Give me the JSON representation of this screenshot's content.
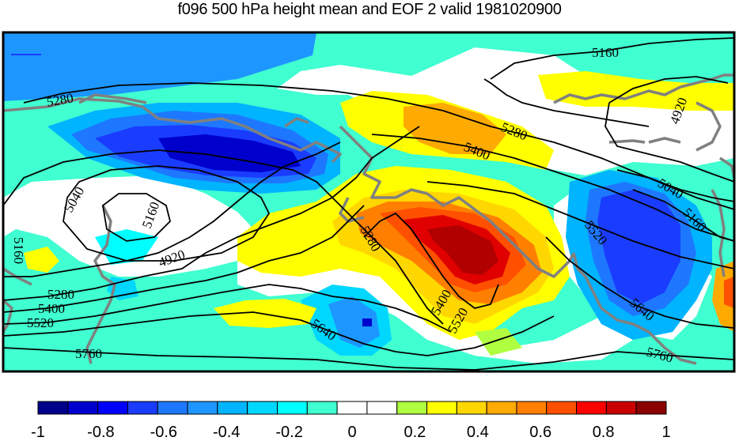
{
  "title": "f096 500 hPa height mean and EOF 2 valid 1981020900",
  "colorbar": {
    "colors": [
      "#00008b",
      "#0000cd",
      "#0000ff",
      "#1a3cff",
      "#1e78ff",
      "#1e96ff",
      "#00b4ff",
      "#00d7ff",
      "#00ffff",
      "#40ffd0",
      "#ffffff",
      "#ffffff",
      "#b0ff40",
      "#ffff00",
      "#ffd700",
      "#ffaa00",
      "#ff8000",
      "#ff5000",
      "#ff0000",
      "#c80000",
      "#8b0000"
    ],
    "tick_labels": [
      "-1",
      "-0.8",
      "-0.6",
      "-0.4",
      "-0.2",
      "0",
      "0.2",
      "0.4",
      "0.6",
      "0.8",
      "1"
    ]
  },
  "fill_colors": {
    "deep_blue": "#1020a0",
    "blue": "#1a3cff",
    "mid_blue": "#1e78ff",
    "light_blue": "#00b4ff",
    "cyan": "#00ffe0",
    "aqua": "#40ffd0",
    "yellow": "#ffff00",
    "gold": "#ffd700",
    "orange": "#ffaa00",
    "dark_orange": "#ff8000",
    "red_orange": "#ff5000",
    "red": "#e00000",
    "dark_red": "#b00000",
    "coast": "#808080"
  },
  "contour_labels": [
    "5160",
    "5280",
    "5400",
    "5280",
    "4920",
    "5040",
    "5160",
    "5040",
    "4920",
    "5160",
    "5280",
    "5400",
    "5520",
    "5760",
    "5640",
    "5400",
    "5520",
    "5520",
    "5640",
    "5760",
    "5160",
    "5280"
  ]
}
